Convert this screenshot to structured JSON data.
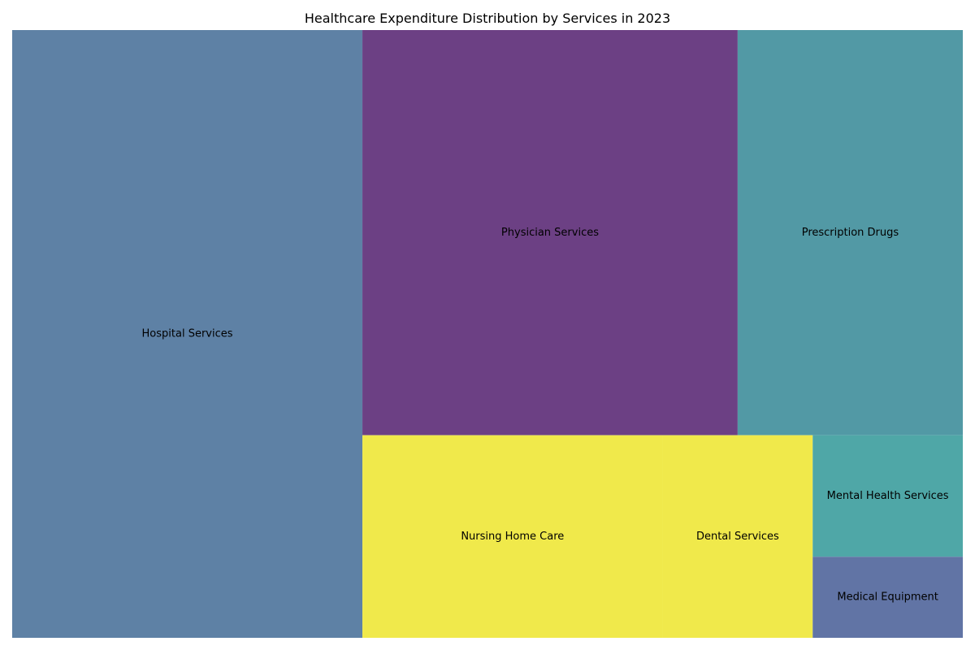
{
  "chart_data": {
    "type": "treemap",
    "title": "Healthcare Expenditure Distribution by Services in 2023",
    "grid": false,
    "legend": "none",
    "items": [
      {
        "label": "Hospital Services",
        "value": 35,
        "color": "#5e81a5"
      },
      {
        "label": "Physician Services",
        "value": 25,
        "color": "#6c4084"
      },
      {
        "label": "Prescription Drugs",
        "value": 15,
        "color": "#5299a5"
      },
      {
        "label": "Nursing Home Care",
        "value": 10,
        "color": "#f0e94b"
      },
      {
        "label": "Dental Services",
        "value": 5,
        "color": "#f0e94b"
      },
      {
        "label": "Mental Health Services",
        "value": 3,
        "color": "#4fa7a7"
      },
      {
        "label": "Medical Equipment",
        "value": 2,
        "color": "#6174a5"
      }
    ]
  }
}
